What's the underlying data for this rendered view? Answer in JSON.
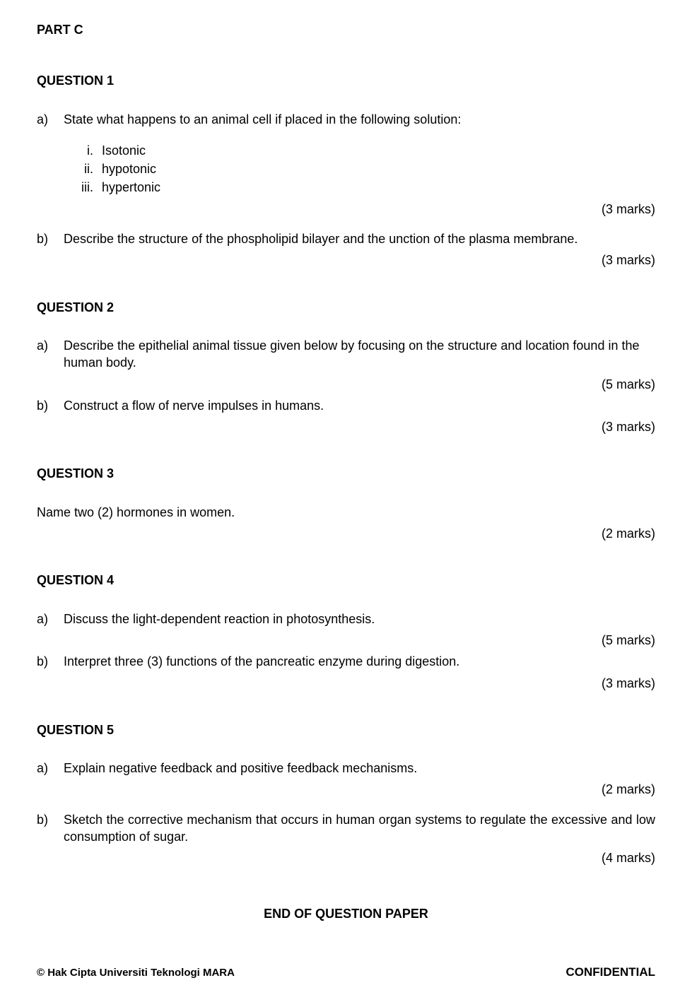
{
  "part_title": "PART C",
  "q1": {
    "title": "QUESTION 1",
    "a": {
      "label": "a)",
      "text": "State what happens to an animal cell if placed in the following solution:",
      "items": [
        {
          "num": "i.",
          "text": "Isotonic"
        },
        {
          "num": "ii.",
          "text": "hypotonic"
        },
        {
          "num": "iii.",
          "text": "hypertonic"
        }
      ],
      "marks": "(3 marks)"
    },
    "b": {
      "label": "b)",
      "text": "Describe the structure of the phospholipid bilayer and the unction of the plasma membrane.",
      "marks": "(3 marks)"
    }
  },
  "q2": {
    "title": "QUESTION 2",
    "a": {
      "label": "a)",
      "text": "Describe the epithelial animal tissue given below by focusing on the structure and location found in the human body.",
      "marks": "(5 marks)"
    },
    "b": {
      "label": "b)",
      "text": "Construct a flow of nerve impulses in humans.",
      "marks": "(3 marks)"
    }
  },
  "q3": {
    "title": "QUESTION 3",
    "text": "Name two (2) hormones in women.",
    "marks": "(2 marks)"
  },
  "q4": {
    "title": "QUESTION 4",
    "a": {
      "label": "a)",
      "text": "Discuss the light-dependent reaction in photosynthesis.",
      "marks": "(5 marks)"
    },
    "b": {
      "label": "b)",
      "text": "Interpret three (3) functions of the pancreatic enzyme during digestion.",
      "marks": "(3 marks)"
    }
  },
  "q5": {
    "title": "QUESTION 5",
    "a": {
      "label": "a)",
      "text": "Explain negative feedback and positive feedback mechanisms.",
      "marks": "(2 marks)"
    },
    "b": {
      "label": "b)",
      "text": "Sketch the corrective mechanism that occurs in human organ systems to regulate the excessive and low consumption of sugar.",
      "marks": "(4 marks)"
    }
  },
  "end_text": "END OF QUESTION PAPER",
  "footer": {
    "left": "© Hak Cipta Universiti Teknologi MARA",
    "right": "CONFIDENTIAL"
  }
}
